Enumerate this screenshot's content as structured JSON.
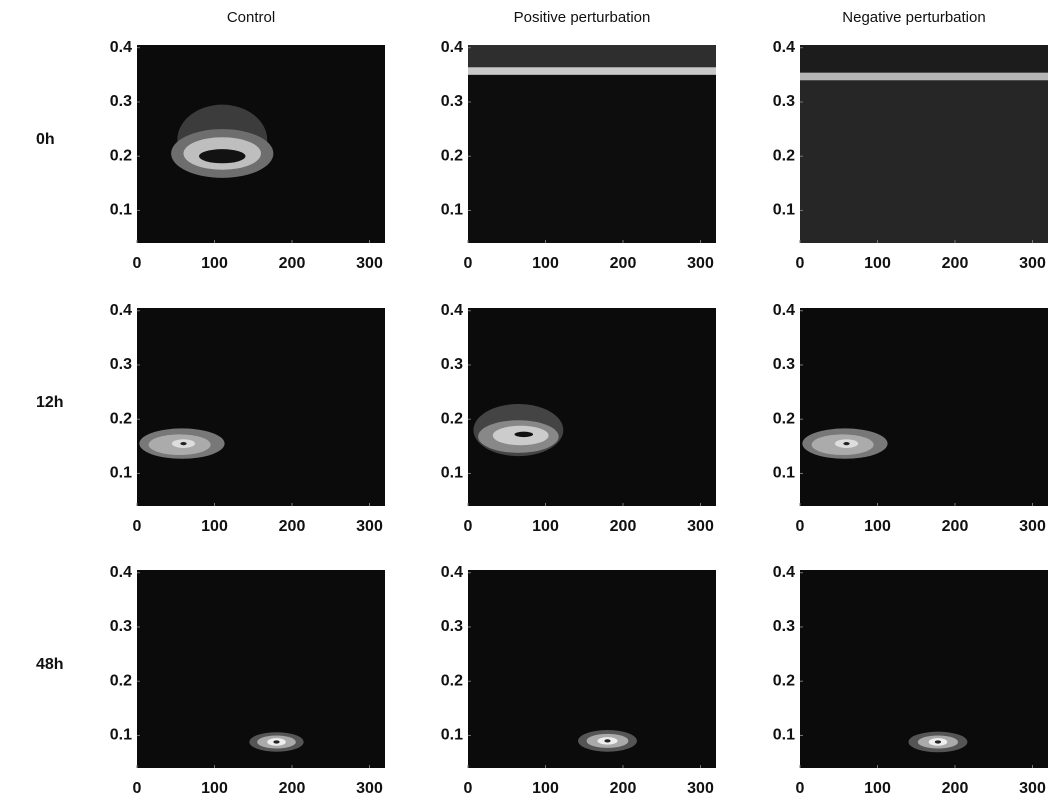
{
  "column_titles": [
    "Control",
    "Positive perturbation",
    "Negative perturbation"
  ],
  "row_labels": [
    "0h",
    "12h",
    "48h"
  ],
  "chart_data": [
    {
      "type": "contour",
      "xlim": [
        0,
        320
      ],
      "ylim": [
        0.04,
        0.405
      ],
      "xticks": [
        0,
        100,
        200,
        300
      ],
      "yticks": [
        0.1,
        0.2,
        0.3,
        0.4
      ],
      "background": "#0b0b0b",
      "contours": [
        {
          "cx": 110,
          "cy": 0.23,
          "rx": 58,
          "ry": 0.065,
          "color": "#3c3c3c"
        },
        {
          "cx": 110,
          "cy": 0.205,
          "rx": 66,
          "ry": 0.045,
          "color": "#6e6e6e"
        },
        {
          "cx": 110,
          "cy": 0.205,
          "rx": 50,
          "ry": 0.03,
          "color": "#bebebe"
        },
        {
          "cx": 110,
          "cy": 0.2,
          "rx": 30,
          "ry": 0.013,
          "color": "#121212"
        }
      ]
    },
    {
      "type": "contour",
      "xlim": [
        0,
        320
      ],
      "ylim": [
        0.04,
        0.405
      ],
      "xticks": [
        0,
        100,
        200,
        300
      ],
      "yticks": [
        0.1,
        0.2,
        0.3,
        0.4
      ],
      "background": "#0d0d0d",
      "band": {
        "y": 0.357,
        "height": 0.014,
        "color": "#c8c8c8",
        "above": "#2e2e2e"
      }
    },
    {
      "type": "contour",
      "xlim": [
        0,
        320
      ],
      "ylim": [
        0.04,
        0.405
      ],
      "xticks": [
        0,
        100,
        200,
        300
      ],
      "yticks": [
        0.1,
        0.2,
        0.3,
        0.4
      ],
      "background": "#262626",
      "band": {
        "y": 0.347,
        "height": 0.014,
        "color": "#b5b5b5",
        "above": "#1c1c1c"
      }
    },
    {
      "type": "contour",
      "xlim": [
        0,
        320
      ],
      "ylim": [
        0.04,
        0.405
      ],
      "xticks": [
        0,
        100,
        200,
        300
      ],
      "yticks": [
        0.1,
        0.2,
        0.3,
        0.4
      ],
      "background": "#0b0b0b",
      "contours": [
        {
          "cx": 58,
          "cy": 0.155,
          "rx": 55,
          "ry": 0.028,
          "color": "#787878"
        },
        {
          "cx": 55,
          "cy": 0.153,
          "rx": 40,
          "ry": 0.019,
          "color": "#ababab"
        },
        {
          "cx": 60,
          "cy": 0.155,
          "rx": 15,
          "ry": 0.008,
          "color": "#dddddd"
        },
        {
          "cx": 60,
          "cy": 0.155,
          "rx": 4,
          "ry": 0.003,
          "color": "#222222"
        }
      ]
    },
    {
      "type": "contour",
      "xlim": [
        0,
        320
      ],
      "ylim": [
        0.04,
        0.405
      ],
      "xticks": [
        0,
        100,
        200,
        300
      ],
      "yticks": [
        0.1,
        0.2,
        0.3,
        0.4
      ],
      "background": "#0b0b0b",
      "contours": [
        {
          "cx": 65,
          "cy": 0.18,
          "rx": 58,
          "ry": 0.048,
          "color": "#444444"
        },
        {
          "cx": 65,
          "cy": 0.168,
          "rx": 52,
          "ry": 0.03,
          "color": "#888888"
        },
        {
          "cx": 68,
          "cy": 0.17,
          "rx": 36,
          "ry": 0.018,
          "color": "#cccccc"
        },
        {
          "cx": 72,
          "cy": 0.172,
          "rx": 12,
          "ry": 0.005,
          "color": "#111111"
        }
      ]
    },
    {
      "type": "contour",
      "xlim": [
        0,
        320
      ],
      "ylim": [
        0.04,
        0.405
      ],
      "xticks": [
        0,
        100,
        200,
        300
      ],
      "yticks": [
        0.1,
        0.2,
        0.3,
        0.4
      ],
      "background": "#0b0b0b",
      "contours": [
        {
          "cx": 58,
          "cy": 0.155,
          "rx": 55,
          "ry": 0.028,
          "color": "#787878"
        },
        {
          "cx": 55,
          "cy": 0.153,
          "rx": 40,
          "ry": 0.019,
          "color": "#ababab"
        },
        {
          "cx": 60,
          "cy": 0.155,
          "rx": 15,
          "ry": 0.008,
          "color": "#dddddd"
        },
        {
          "cx": 60,
          "cy": 0.155,
          "rx": 4,
          "ry": 0.003,
          "color": "#222222"
        }
      ]
    },
    {
      "type": "contour",
      "xlim": [
        0,
        320
      ],
      "ylim": [
        0.04,
        0.405
      ],
      "xticks": [
        0,
        100,
        200,
        300
      ],
      "yticks": [
        0.1,
        0.2,
        0.3,
        0.4
      ],
      "background": "#0b0b0b",
      "contours": [
        {
          "cx": 180,
          "cy": 0.088,
          "rx": 35,
          "ry": 0.018,
          "color": "#555555"
        },
        {
          "cx": 180,
          "cy": 0.088,
          "rx": 25,
          "ry": 0.012,
          "color": "#aaaaaa"
        },
        {
          "cx": 180,
          "cy": 0.088,
          "rx": 12,
          "ry": 0.007,
          "color": "#eeeeee"
        },
        {
          "cx": 180,
          "cy": 0.088,
          "rx": 4,
          "ry": 0.003,
          "color": "#222222"
        }
      ]
    },
    {
      "type": "contour",
      "xlim": [
        0,
        320
      ],
      "ylim": [
        0.04,
        0.405
      ],
      "xticks": [
        0,
        100,
        200,
        300
      ],
      "yticks": [
        0.1,
        0.2,
        0.3,
        0.4
      ],
      "background": "#0b0b0b",
      "contours": [
        {
          "cx": 180,
          "cy": 0.09,
          "rx": 38,
          "ry": 0.02,
          "color": "#555555"
        },
        {
          "cx": 180,
          "cy": 0.09,
          "rx": 27,
          "ry": 0.013,
          "color": "#aaaaaa"
        },
        {
          "cx": 180,
          "cy": 0.09,
          "rx": 13,
          "ry": 0.007,
          "color": "#eeeeee"
        },
        {
          "cx": 180,
          "cy": 0.09,
          "rx": 4,
          "ry": 0.003,
          "color": "#222222"
        }
      ]
    },
    {
      "type": "contour",
      "xlim": [
        0,
        320
      ],
      "ylim": [
        0.04,
        0.405
      ],
      "xticks": [
        0,
        100,
        200,
        300
      ],
      "yticks": [
        0.1,
        0.2,
        0.3,
        0.4
      ],
      "background": "#0b0b0b",
      "contours": [
        {
          "cx": 178,
          "cy": 0.088,
          "rx": 38,
          "ry": 0.019,
          "color": "#555555"
        },
        {
          "cx": 178,
          "cy": 0.088,
          "rx": 26,
          "ry": 0.012,
          "color": "#aaaaaa"
        },
        {
          "cx": 178,
          "cy": 0.088,
          "rx": 12,
          "ry": 0.007,
          "color": "#eeeeee"
        },
        {
          "cx": 178,
          "cy": 0.088,
          "rx": 4,
          "ry": 0.003,
          "color": "#222222"
        }
      ]
    }
  ]
}
